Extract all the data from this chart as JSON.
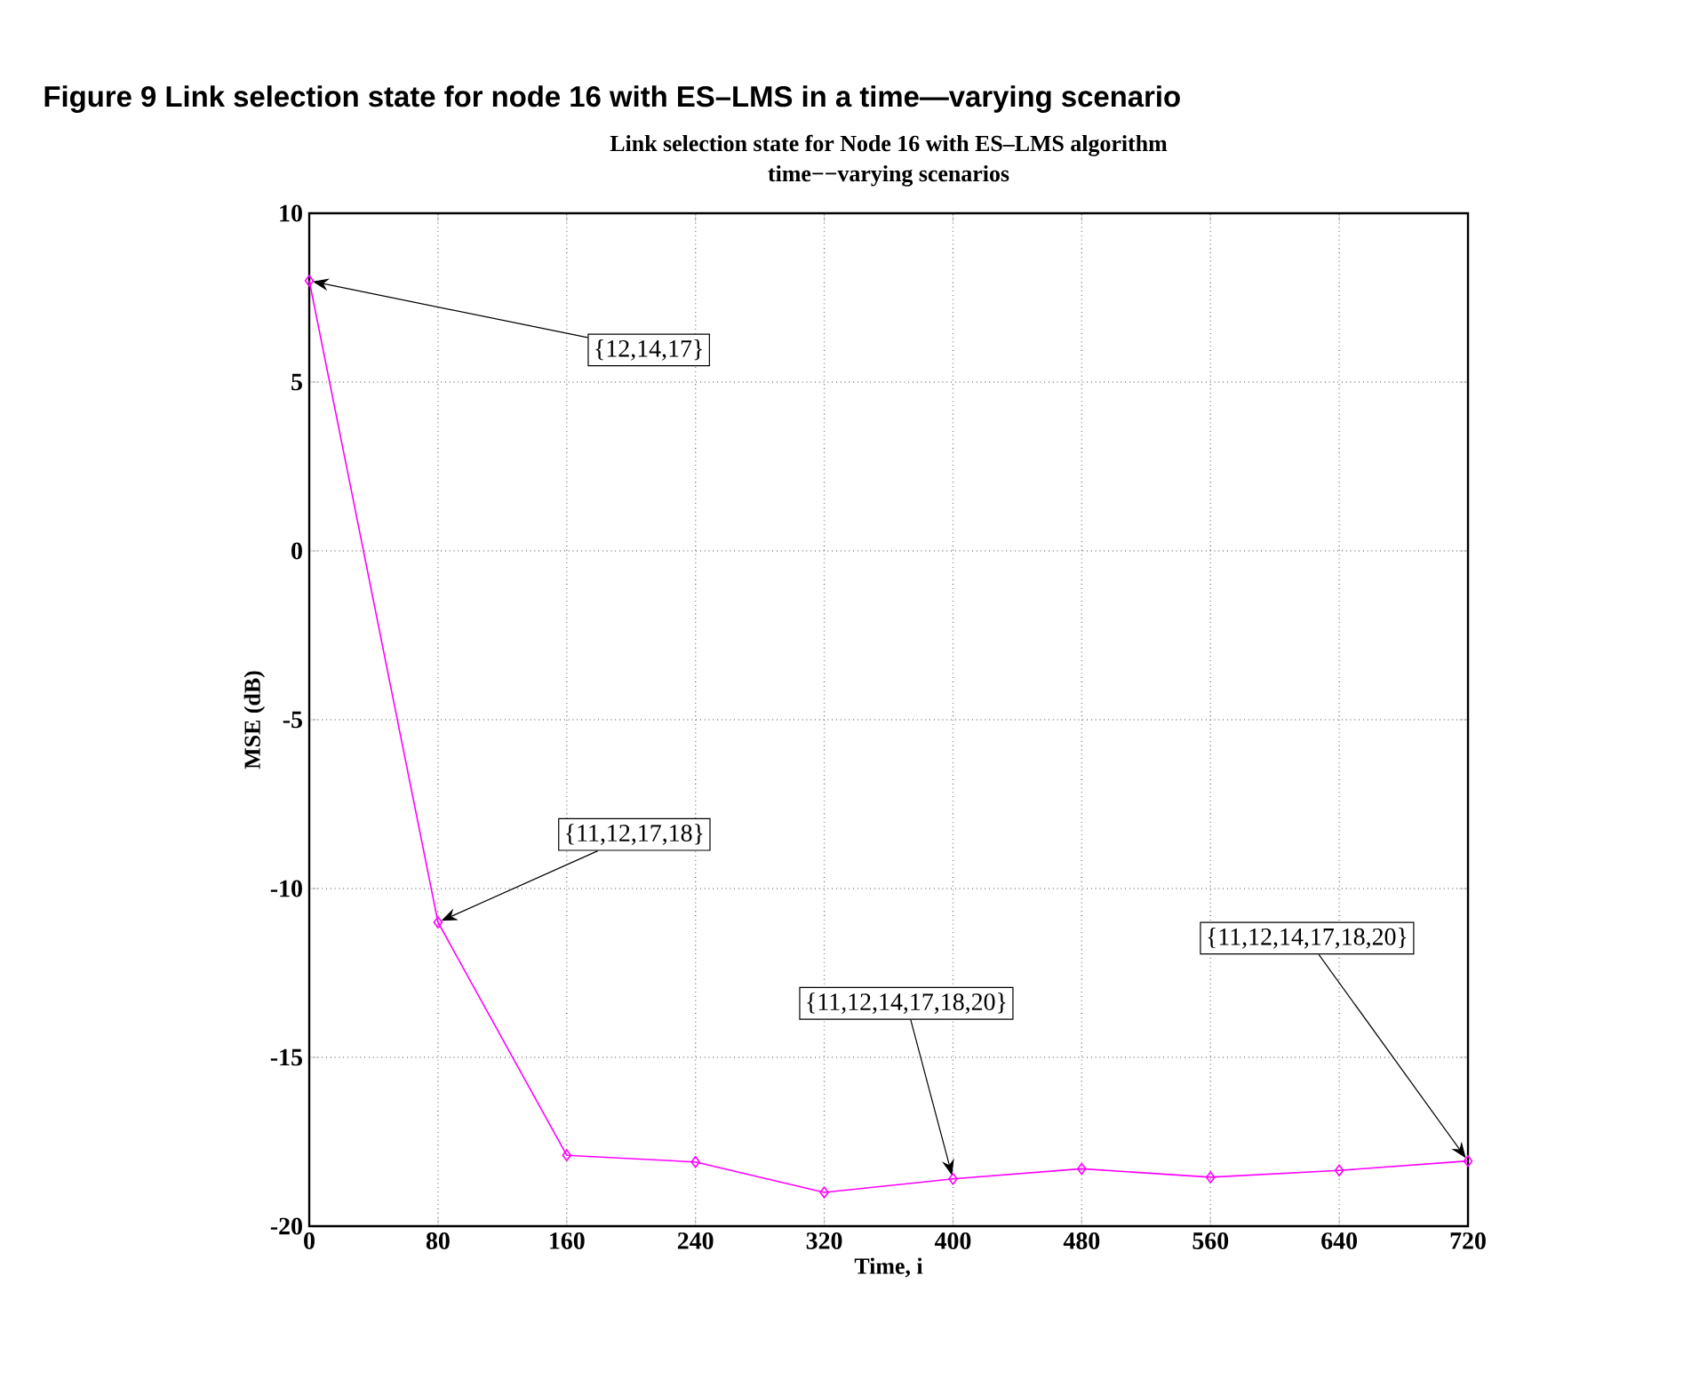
{
  "chart_data": {
    "type": "line",
    "title": "Link selection state for Node 16 with ES–LMS algorithm",
    "subtitle": "time−−varying scenarios",
    "xlabel": "Time, i",
    "ylabel": "MSE (dB)",
    "x": [
      0,
      80,
      160,
      240,
      320,
      400,
      480,
      560,
      640,
      720
    ],
    "series": [
      {
        "color": "#ff00ff",
        "values": [
          8,
          -11,
          -17.9,
          -18.1,
          -19.0,
          -18.6,
          -18.3,
          -18.55,
          -18.35,
          -18.07
        ]
      }
    ],
    "xlim": [
      0,
      720
    ],
    "xticks": [
      0,
      80,
      160,
      240,
      320,
      400,
      480,
      560,
      640,
      720
    ],
    "ylim": [
      -20,
      10
    ],
    "yticks": [
      -20,
      -15,
      -10,
      -5,
      0,
      5,
      10
    ],
    "grid": true,
    "marker": "diamond",
    "line_style": "solid",
    "annotations": [
      "Figure 9   Link selection state for node 16 with ES–LMS in a time—varying scenario",
      {
        "text": "{12,14,17}",
        "x": 0,
        "y": 8
      },
      {
        "text": "{11,12,17,18}",
        "x": 80,
        "y": -11
      },
      {
        "text": "{11,12,14,17,18,20}",
        "x": 400,
        "y": -18.6
      },
      {
        "text": "{11,12,14,17,18,20}",
        "x": 720,
        "y": -18.07
      }
    ]
  }
}
